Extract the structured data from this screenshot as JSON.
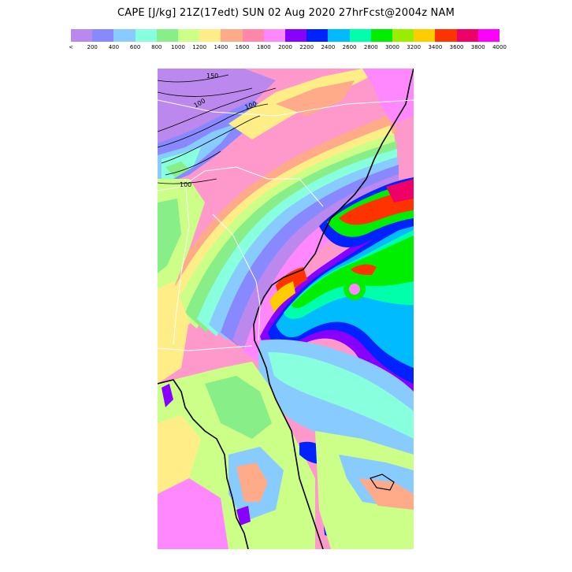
{
  "title": "CAPE [J/kg] 21Z(17edt) SUN 02 Aug 2020 27hrFcst@2004z NAM",
  "legend": {
    "ticks": [
      "<",
      "200",
      "400",
      "600",
      "800",
      "1000",
      "1200",
      "1400",
      "1600",
      "1800",
      "2000",
      "2200",
      "2400",
      "2600",
      "2800",
      "3000",
      "3200",
      "3400",
      "3600",
      "3800",
      "4000"
    ],
    "colors": [
      "#bb88ee",
      "#8888ff",
      "#88ccff",
      "#88ffdd",
      "#88ee88",
      "#ccff88",
      "#ffee88",
      "#ffaa88",
      "#ff88aa",
      "#ff88ff",
      "#8800ff",
      "#0022ff",
      "#00bbff",
      "#00ffaa",
      "#00ee00",
      "#99ee00",
      "#ffcc00",
      "#ff3300",
      "#ee0066",
      "#ff00ff"
    ]
  },
  "map": {
    "contour_labels": [
      "150",
      "100",
      "100",
      "100"
    ]
  }
}
